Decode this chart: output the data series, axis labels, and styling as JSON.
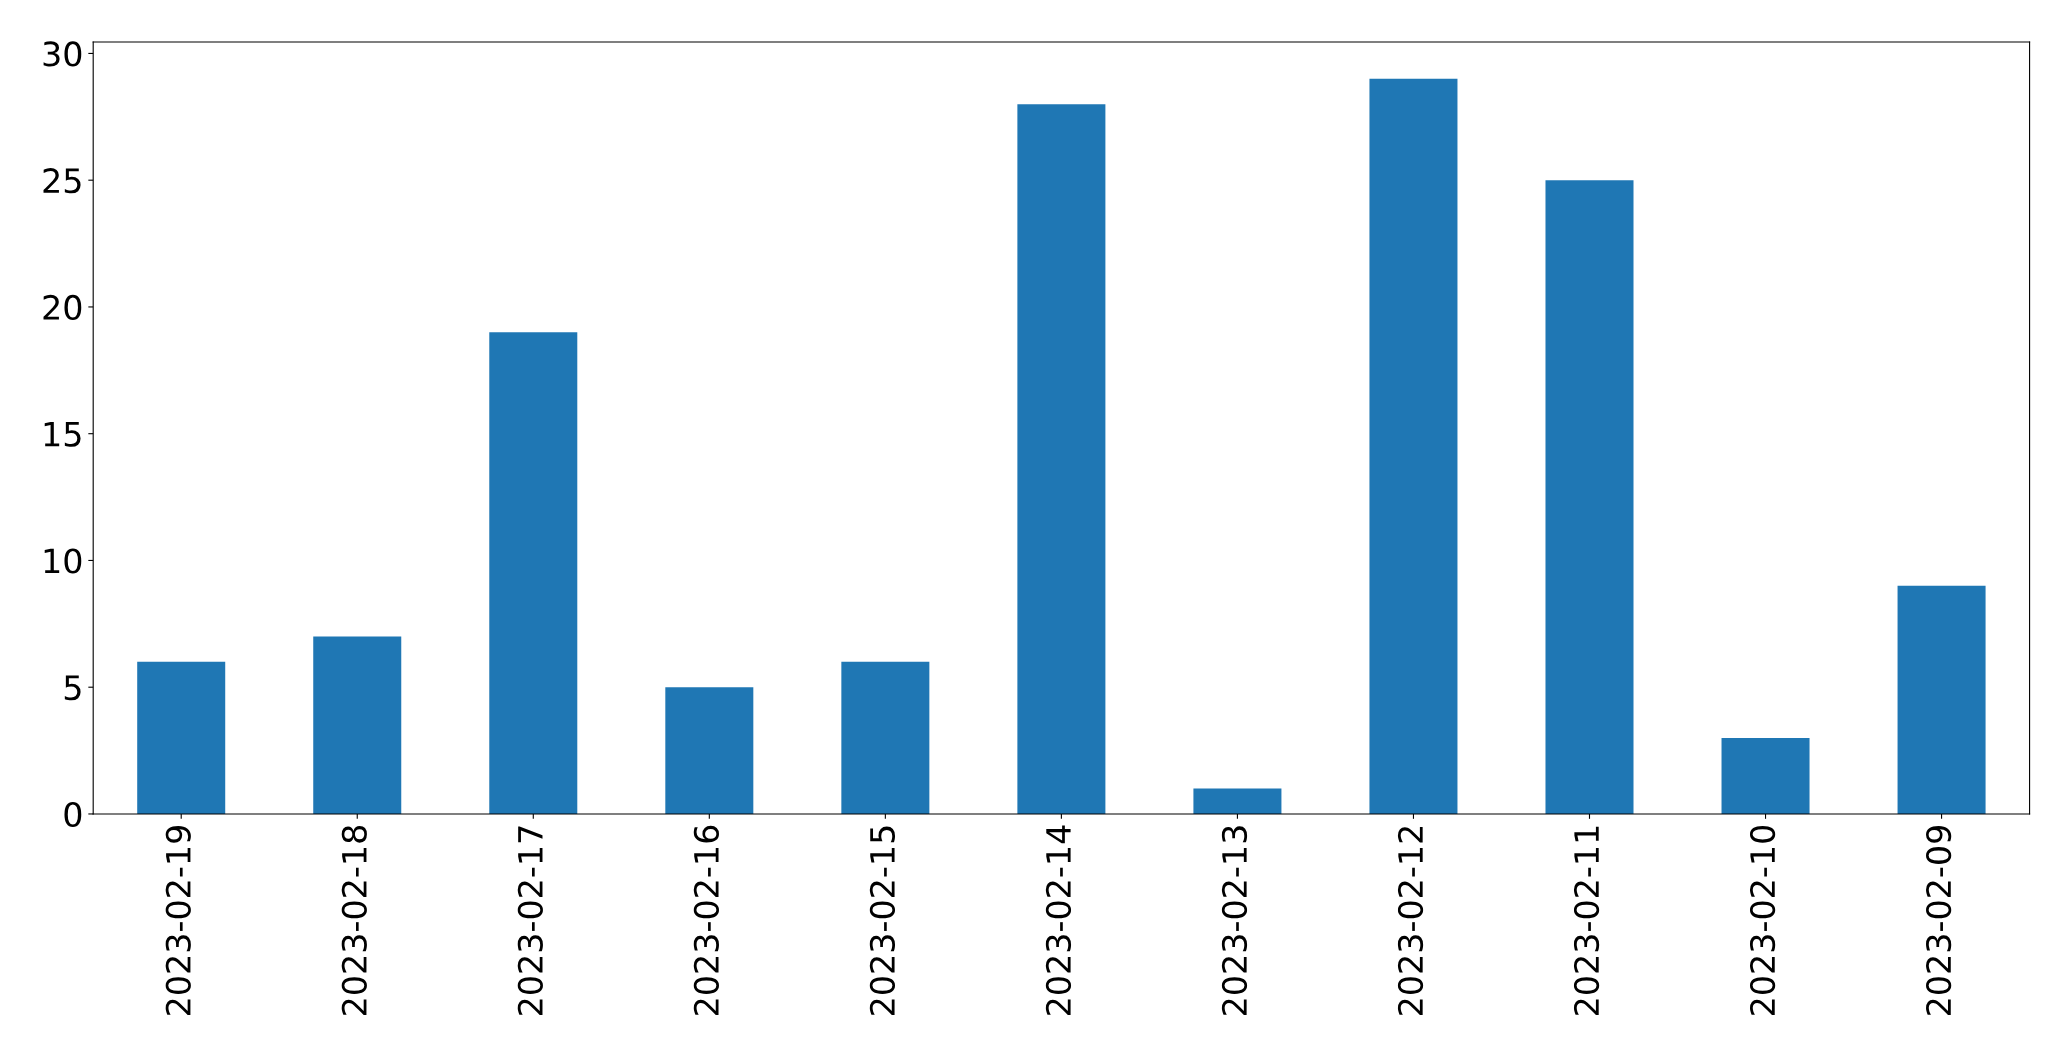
{
  "chart_data": {
    "type": "bar",
    "categories": [
      "2023-02-19",
      "2023-02-18",
      "2023-02-17",
      "2023-02-16",
      "2023-02-15",
      "2023-02-14",
      "2023-02-13",
      "2023-02-12",
      "2023-02-11",
      "2023-02-10",
      "2023-02-09"
    ],
    "values": [
      6,
      7,
      19,
      5,
      6,
      28,
      1,
      29,
      25,
      3,
      9
    ],
    "color": "#1f77b4",
    "ylim": [
      0,
      30.45
    ],
    "yticks": [
      0,
      5,
      10,
      15,
      20,
      25,
      30
    ],
    "grid": false,
    "legend": false
  }
}
